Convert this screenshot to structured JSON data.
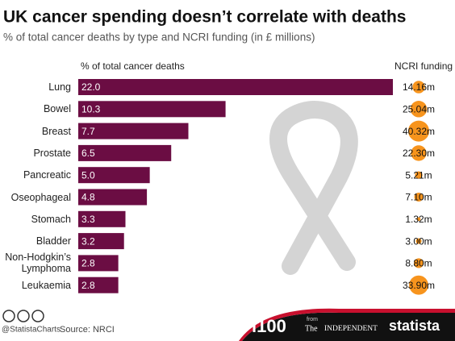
{
  "chart_data": {
    "type": "bar",
    "title": "UK cancer spending doesn’t correlate with deaths",
    "subtitle": "% of total cancer deaths by type and NCRI funding (in £ millions)",
    "categories": [
      "Lung",
      "Bowel",
      "Breast",
      "Prostate",
      "Pancreatic",
      "Oseophageal",
      "Stomach",
      "Bladder",
      "Non-Hodgkin’s Lymphoma",
      "Leukaemia"
    ],
    "series": [
      {
        "name": "% of total cancer deaths",
        "color": "#6b0d43",
        "values": [
          22.0,
          10.3,
          7.7,
          6.5,
          5.0,
          4.8,
          3.3,
          3.2,
          2.8,
          2.8
        ],
        "value_labels": [
          "22.0",
          "10.3",
          "7.7",
          "6.5",
          "5.0",
          "4.8",
          "3.3",
          "3.2",
          "2.8",
          "2.8"
        ]
      },
      {
        "name": "NCRI funding",
        "color": "#f7941d",
        "values": [
          14.16,
          25.04,
          40.32,
          22.3,
          5.21,
          7.1,
          1.32,
          3.0,
          8.8,
          33.9
        ],
        "value_labels": [
          "14.16m",
          "25.04m",
          "40.32m",
          "22.30m",
          "5.21m",
          "7.10m",
          "1.32m",
          "3.00m",
          "8.80m",
          "33.90m"
        ]
      }
    ]
  },
  "footer": {
    "handle": "@StatistaCharts",
    "source": "Source: NRCI",
    "i100": "i100",
    "from": "from",
    "the": "The",
    "independent": "INDEPENDENT",
    "brand": "statista"
  }
}
